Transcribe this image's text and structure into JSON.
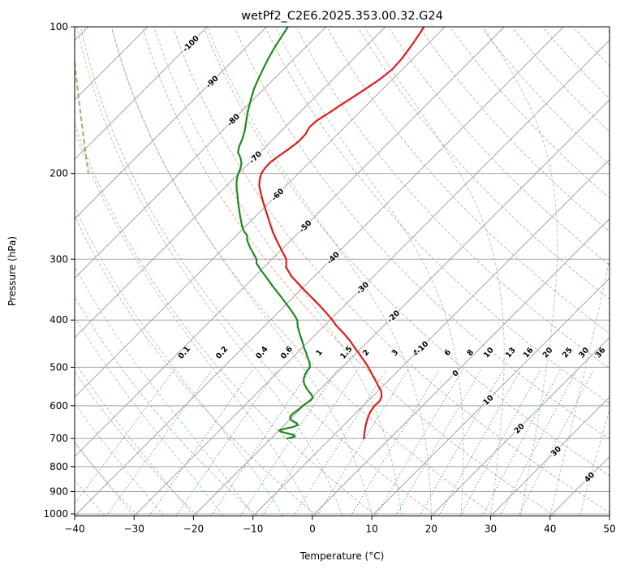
{
  "title": "wetPf2_C2E6.2025.353.00.32.G24",
  "axes": {
    "x_label": "Temperature (°C)",
    "y_label": "Pressure (hPa)",
    "x_ticks": [
      {
        "v": -40,
        "label": "−40"
      },
      {
        "v": -30,
        "label": "−30"
      },
      {
        "v": -20,
        "label": "−20"
      },
      {
        "v": -10,
        "label": "−10"
      },
      {
        "v": 0,
        "label": "0"
      },
      {
        "v": 10,
        "label": "10"
      },
      {
        "v": 20,
        "label": "20"
      },
      {
        "v": 30,
        "label": "30"
      },
      {
        "v": 40,
        "label": "40"
      },
      {
        "v": 50,
        "label": "50"
      }
    ],
    "y_ticks": [
      {
        "v": 100,
        "label": "100"
      },
      {
        "v": 200,
        "label": "200"
      },
      {
        "v": 300,
        "label": "300"
      },
      {
        "v": 400,
        "label": "400"
      },
      {
        "v": 500,
        "label": "500"
      },
      {
        "v": 600,
        "label": "600"
      },
      {
        "v": 700,
        "label": "700"
      },
      {
        "v": 800,
        "label": "800"
      },
      {
        "v": 900,
        "label": "900"
      },
      {
        "v": 1000,
        "label": "1000"
      }
    ]
  },
  "chart_data": {
    "type": "line",
    "subtype": "skew_t_log_p",
    "title": "wetPf2_C2E6.2025.353.00.32.G24",
    "xlabel": "Temperature (°C)",
    "ylabel": "Pressure (hPa)",
    "x_range_c": [
      -40,
      50
    ],
    "pressure_range_hpa": [
      100,
      1010
    ],
    "skew_deg": 45,
    "grid": true,
    "legend": "none",
    "background": {
      "isotherms_c": {
        "from": -120,
        "to": 50,
        "step": 10
      },
      "dry_adiabats_c": {
        "from": -40,
        "to": 195,
        "step": 10
      },
      "moist_adiabats_c": {
        "from": -40,
        "to": 45,
        "step": 5
      },
      "mixing_ratio_gkg": [
        0.1,
        0.2,
        0.4,
        0.6,
        1,
        1.5,
        2,
        3,
        4,
        6,
        8,
        10,
        13,
        16,
        20,
        25,
        30,
        36
      ]
    },
    "isotherm_labels": [
      {
        "t": -100,
        "label": "-100"
      },
      {
        "t": -90,
        "label": "-90"
      },
      {
        "t": -80,
        "label": "-80"
      },
      {
        "t": -70,
        "label": "-70"
      },
      {
        "t": -60,
        "label": "-60"
      },
      {
        "t": -50,
        "label": "-50"
      },
      {
        "t": -40,
        "label": "-40"
      },
      {
        "t": -30,
        "label": "-30"
      },
      {
        "t": -20,
        "label": "-20"
      },
      {
        "t": -10,
        "label": "-10"
      },
      {
        "t": 0,
        "label": "0"
      },
      {
        "t": 10,
        "label": "10"
      },
      {
        "t": 20,
        "label": "20"
      },
      {
        "t": 30,
        "label": "30"
      },
      {
        "t": 40,
        "label": "40"
      }
    ],
    "series": [
      {
        "name": "temperature",
        "color": "#dd1c1c",
        "units": {
          "p": "hPa",
          "t": "degC"
        },
        "points": [
          [
            700,
            -4.4
          ],
          [
            680,
            -5.3
          ],
          [
            660,
            -6.2
          ],
          [
            640,
            -7.0
          ],
          [
            620,
            -7.7
          ],
          [
            600,
            -8.1
          ],
          [
            588,
            -8.0
          ],
          [
            575,
            -8.4
          ],
          [
            560,
            -9.4
          ],
          [
            545,
            -10.9
          ],
          [
            530,
            -12.4
          ],
          [
            515,
            -14.0
          ],
          [
            500,
            -15.6
          ],
          [
            485,
            -17.4
          ],
          [
            470,
            -19.3
          ],
          [
            455,
            -21.3
          ],
          [
            440,
            -23.3
          ],
          [
            425,
            -25.6
          ],
          [
            410,
            -28.1
          ],
          [
            400,
            -29.6
          ],
          [
            388,
            -31.6
          ],
          [
            375,
            -33.9
          ],
          [
            362,
            -36.4
          ],
          [
            350,
            -38.8
          ],
          [
            338,
            -41.2
          ],
          [
            325,
            -43.9
          ],
          [
            312,
            -46.2
          ],
          [
            300,
            -47.6
          ],
          [
            288,
            -49.8
          ],
          [
            276,
            -52.1
          ],
          [
            264,
            -54.4
          ],
          [
            252,
            -56.6
          ],
          [
            240,
            -58.9
          ],
          [
            230,
            -60.9
          ],
          [
            220,
            -62.9
          ],
          [
            212,
            -64.5
          ],
          [
            205,
            -65.6
          ],
          [
            200,
            -66.2
          ],
          [
            195,
            -66.5
          ],
          [
            190,
            -66.6
          ],
          [
            184,
            -66.2
          ],
          [
            178,
            -65.7
          ],
          [
            172,
            -65.3
          ],
          [
            166,
            -65.4
          ],
          [
            161,
            -65.9
          ],
          [
            156,
            -65.8
          ],
          [
            150,
            -65.0
          ],
          [
            145,
            -64.4
          ],
          [
            140,
            -63.7
          ],
          [
            134,
            -62.9
          ],
          [
            128,
            -62.1
          ],
          [
            122,
            -61.7
          ],
          [
            116,
            -61.9
          ],
          [
            110,
            -62.4
          ],
          [
            105,
            -62.9
          ],
          [
            100,
            -63.5
          ]
        ]
      },
      {
        "name": "dewpoint",
        "color": "#1f8a1f",
        "units": {
          "p": "hPa",
          "t": "degC"
        },
        "points": [
          [
            700,
            -17.3
          ],
          [
            694,
            -16.3
          ],
          [
            689,
            -16.7
          ],
          [
            684,
            -18.0
          ],
          [
            679,
            -19.3
          ],
          [
            674,
            -20.0
          ],
          [
            669,
            -19.4
          ],
          [
            663,
            -18.2
          ],
          [
            657,
            -17.7
          ],
          [
            651,
            -18.3
          ],
          [
            645,
            -19.3
          ],
          [
            638,
            -20.1
          ],
          [
            630,
            -20.5
          ],
          [
            622,
            -20.5
          ],
          [
            614,
            -20.3
          ],
          [
            606,
            -20.2
          ],
          [
            598,
            -20.1
          ],
          [
            590,
            -19.9
          ],
          [
            583,
            -19.7
          ],
          [
            576,
            -19.9
          ],
          [
            568,
            -20.7
          ],
          [
            560,
            -21.6
          ],
          [
            552,
            -22.5
          ],
          [
            544,
            -23.3
          ],
          [
            536,
            -24.0
          ],
          [
            527,
            -24.6
          ],
          [
            518,
            -25.0
          ],
          [
            509,
            -25.3
          ],
          [
            500,
            -25.4
          ],
          [
            489,
            -26.3
          ],
          [
            478,
            -27.4
          ],
          [
            467,
            -28.5
          ],
          [
            456,
            -29.7
          ],
          [
            445,
            -30.8
          ],
          [
            434,
            -32.0
          ],
          [
            423,
            -33.2
          ],
          [
            412,
            -34.4
          ],
          [
            400,
            -35.5
          ],
          [
            389,
            -37.1
          ],
          [
            377,
            -39.0
          ],
          [
            365,
            -41.0
          ],
          [
            353,
            -43.1
          ],
          [
            341,
            -45.3
          ],
          [
            329,
            -47.5
          ],
          [
            317,
            -49.8
          ],
          [
            306,
            -51.9
          ],
          [
            300,
            -52.6
          ],
          [
            291,
            -54.3
          ],
          [
            282,
            -56.0
          ],
          [
            274,
            -57.4
          ],
          [
            268,
            -58.2
          ],
          [
            263,
            -59.4
          ],
          [
            257,
            -60.5
          ],
          [
            250,
            -61.7
          ],
          [
            243,
            -62.9
          ],
          [
            236,
            -64.1
          ],
          [
            229,
            -65.3
          ],
          [
            222,
            -66.5
          ],
          [
            215,
            -67.8
          ],
          [
            208,
            -69.0
          ],
          [
            203,
            -69.7
          ],
          [
            200,
            -70.1
          ],
          [
            196,
            -70.5
          ],
          [
            191,
            -71.2
          ],
          [
            186,
            -72.3
          ],
          [
            181,
            -73.7
          ],
          [
            176,
            -74.5
          ],
          [
            170,
            -75.2
          ],
          [
            164,
            -76.1
          ],
          [
            158,
            -77.2
          ],
          [
            152,
            -78.4
          ],
          [
            146,
            -79.5
          ],
          [
            140,
            -80.6
          ],
          [
            134,
            -81.7
          ],
          [
            128,
            -82.6
          ],
          [
            122,
            -83.5
          ],
          [
            116,
            -84.4
          ],
          [
            110,
            -85.2
          ],
          [
            105,
            -85.8
          ],
          [
            100,
            -86.4
          ]
        ]
      }
    ]
  },
  "colors": {
    "temperature": "#dd1c1c",
    "dewpoint": "#1f8a1f",
    "gridline": "#a3a3a3",
    "isotherm": "#a3a3a3",
    "dry_adiabat": "#cc4439",
    "moist_adiabat": "#2d8a2d",
    "mixing_line": "#2474b5",
    "isotherm_label_cold": "#2474b5",
    "isotherm_label_zero": "#808080",
    "isotherm_label_warm": "#cb4a42",
    "mixing_label": "#2474b5",
    "frame": "#000000"
  }
}
